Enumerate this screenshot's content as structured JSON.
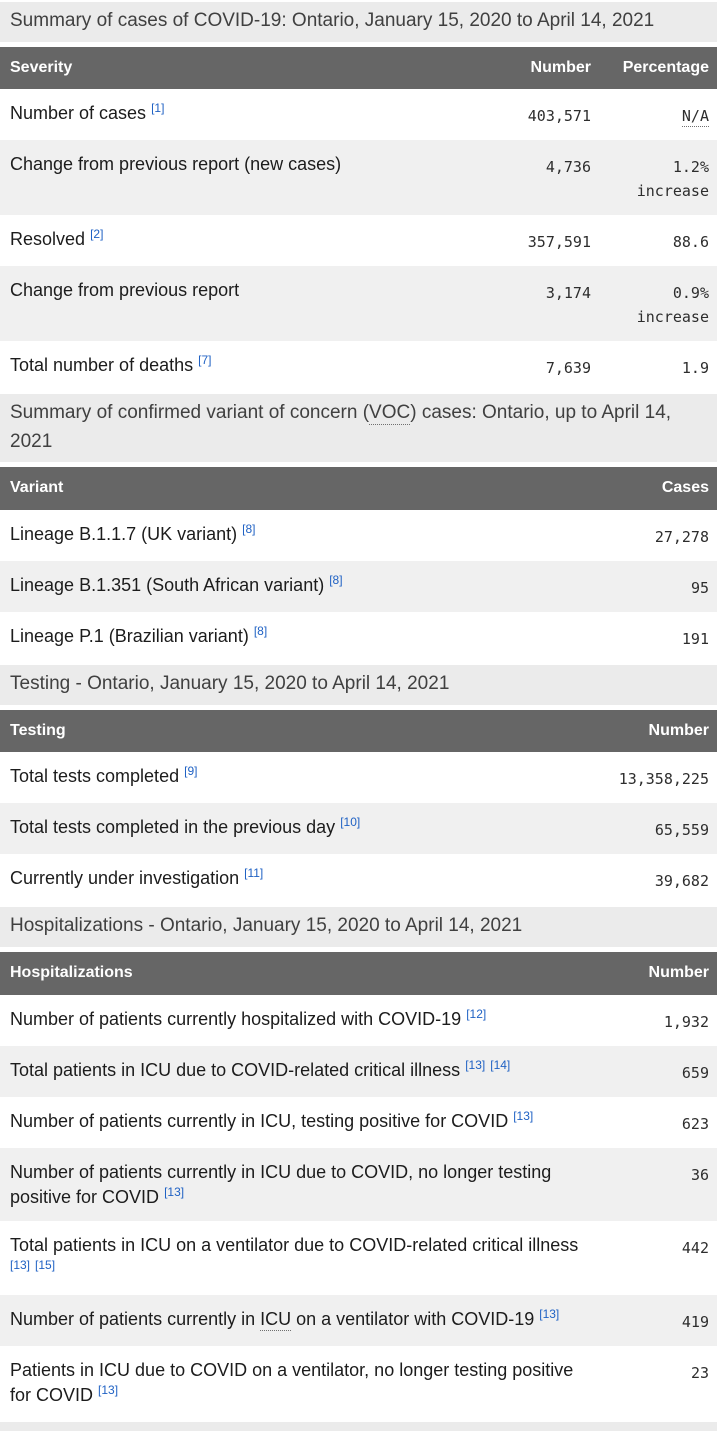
{
  "sections": [
    {
      "heading": "Summary of cases of COVID-19: Ontario, January 15, 2020 to April 14, 2021",
      "columns": [
        "Severity",
        "Number",
        "Percentage"
      ],
      "rows": [
        {
          "label": "Number of cases",
          "footnotes": [
            "[1]"
          ],
          "number": "403,571",
          "percentage": "N/A",
          "percentage_abbr": true
        },
        {
          "label": "Change from previous report (new cases)",
          "footnotes": [],
          "number": "4,736",
          "percentage": "1.2%",
          "percentage_note": "increase"
        },
        {
          "label": "Resolved",
          "footnotes": [
            "[2]"
          ],
          "number": "357,591",
          "percentage": "88.6"
        },
        {
          "label": "Change from previous report",
          "footnotes": [],
          "number": "3,174",
          "percentage": "0.9%",
          "percentage_note": "increase"
        },
        {
          "label": "Total number of deaths",
          "footnotes": [
            "[7]"
          ],
          "number": "7,639",
          "percentage": "1.9"
        }
      ]
    },
    {
      "heading": "Summary of confirmed variant of concern (VOC) cases: Ontario, up to April 14, 2021",
      "heading_abbr": "VOC",
      "columns": [
        "Variant",
        "Cases"
      ],
      "rows": [
        {
          "label": "Lineage B.1.1.7 (UK variant)",
          "footnotes": [
            "[8]"
          ],
          "number": "27,278"
        },
        {
          "label": "Lineage B.1.351 (South African variant)",
          "footnotes": [
            "[8]"
          ],
          "number": "95"
        },
        {
          "label": "Lineage P.1 (Brazilian variant)",
          "footnotes": [
            "[8]"
          ],
          "number": "191"
        }
      ]
    },
    {
      "heading": "Testing - Ontario, January 15, 2020 to April 14, 2021",
      "columns": [
        "Testing",
        "Number"
      ],
      "rows": [
        {
          "label": "Total tests completed",
          "footnotes": [
            "[9]"
          ],
          "number": "13,358,225"
        },
        {
          "label": "Total tests completed in the previous day",
          "footnotes": [
            "[10]"
          ],
          "number": "65,559"
        },
        {
          "label": "Currently under investigation",
          "footnotes": [
            "[11]"
          ],
          "number": "39,682"
        }
      ]
    },
    {
      "heading": "Hospitalizations - Ontario, January 15, 2020 to April 14, 2021",
      "columns": [
        "Hospitalizations",
        "Number"
      ],
      "rows": [
        {
          "label": "Number of patients currently hospitalized with COVID-19",
          "footnotes": [
            "[12]"
          ],
          "number": "1,932"
        },
        {
          "label": "Total patients in ICU due to COVID-related critical illness",
          "footnotes": [
            "[13]",
            "[14]"
          ],
          "number": "659"
        },
        {
          "label": "Number of patients currently in ICU, testing positive for COVID",
          "footnotes": [
            "[13]"
          ],
          "number": "623"
        },
        {
          "label": "Number of patients currently in ICU due to COVID, no longer testing positive for COVID",
          "footnotes": [
            "[13]"
          ],
          "number": "36"
        },
        {
          "label": "Total patients in ICU on a ventilator due to COVID-related critical illness",
          "footnotes": [
            "[13]",
            "[15]"
          ],
          "number": "442"
        },
        {
          "label": "Number of patients currently in ICU on a ventilator with COVID-19",
          "label_abbr": "ICU",
          "footnotes": [
            "[13]"
          ],
          "number": "419"
        },
        {
          "label": "Patients in ICU due to COVID on a ventilator, no longer testing positive for COVID",
          "footnotes": [
            "[13]"
          ],
          "number": "23"
        }
      ]
    }
  ],
  "colors": {
    "header_bg": "#666666",
    "header_text": "#ffffff",
    "section_heading_bg": "#ebebeb",
    "alt_row_bg": "#f0f0f0",
    "link_blue": "#2062c4"
  }
}
